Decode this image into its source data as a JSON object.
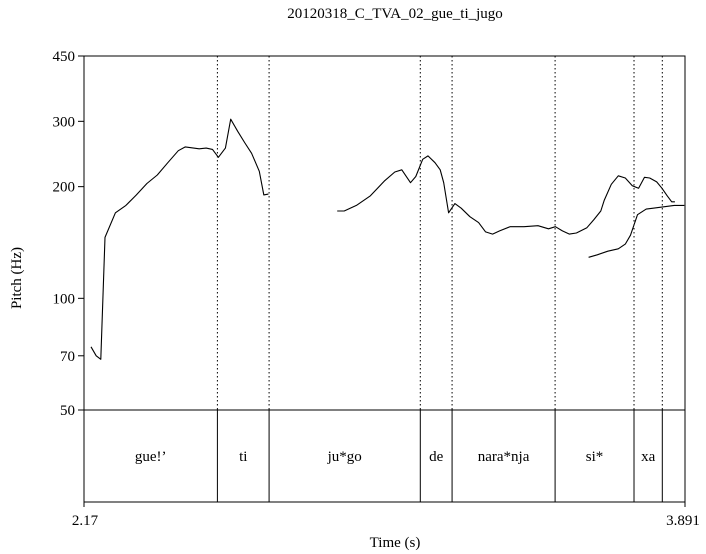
{
  "chart_data": {
    "type": "line",
    "title": "20120318_C_TVA_02_gue_ti_jugo",
    "xlabel": "Time (s)",
    "ylabel": "Pitch (Hz)",
    "xlim": [
      2.17,
      3.891
    ],
    "ylim": [
      50,
      450
    ],
    "y_scale": "log",
    "x_tick_labels": [
      "2.17",
      "3.891"
    ],
    "y_ticks": [
      {
        "value": 50,
        "label": "50"
      },
      {
        "value": 70,
        "label": "70"
      },
      {
        "value": 100,
        "label": "100"
      },
      {
        "value": 200,
        "label": "200"
      },
      {
        "value": 300,
        "label": "300"
      },
      {
        "value": 450,
        "label": "450"
      }
    ],
    "grid": false,
    "series": [
      {
        "segments": [
          [
            [
              2.19,
              74
            ],
            [
              2.205,
              70
            ],
            [
              2.218,
              68.5
            ],
            [
              2.23,
              146
            ],
            [
              2.26,
              170
            ],
            [
              2.29,
              178
            ],
            [
              2.32,
              190
            ],
            [
              2.35,
              204
            ],
            [
              2.38,
              215
            ],
            [
              2.41,
              232
            ],
            [
              2.44,
              250
            ],
            [
              2.46,
              256
            ],
            [
              2.5,
              253
            ],
            [
              2.52,
              254
            ],
            [
              2.538,
              252
            ],
            [
              2.555,
              240
            ],
            [
              2.575,
              254
            ],
            [
              2.59,
              304
            ],
            [
              2.61,
              282
            ],
            [
              2.63,
              263
            ],
            [
              2.65,
              246
            ],
            [
              2.672,
              220
            ],
            [
              2.685,
              190
            ],
            [
              2.698,
              191
            ]
          ],
          [
            [
              2.895,
              172
            ],
            [
              2.915,
              172
            ],
            [
              2.95,
              178
            ],
            [
              2.99,
              189
            ],
            [
              3.03,
              207
            ],
            [
              3.06,
              219
            ],
            [
              3.08,
              222
            ],
            [
              3.105,
              205
            ],
            [
              3.12,
              213
            ],
            [
              3.14,
              237
            ],
            [
              3.155,
              242
            ],
            [
              3.175,
              232
            ],
            [
              3.19,
              222
            ],
            [
              3.2,
              205
            ],
            [
              3.214,
              170
            ],
            [
              3.232,
              180
            ],
            [
              3.25,
              175
            ],
            [
              3.275,
              166
            ],
            [
              3.3,
              160
            ],
            [
              3.32,
              151
            ],
            [
              3.34,
              149
            ],
            [
              3.36,
              152
            ],
            [
              3.39,
              156
            ],
            [
              3.43,
              156
            ],
            [
              3.47,
              157
            ],
            [
              3.5,
              154
            ],
            [
              3.52,
              156
            ],
            [
              3.54,
              152
            ],
            [
              3.56,
              149
            ],
            [
              3.58,
              150
            ],
            [
              3.61,
              155
            ],
            [
              3.63,
              163
            ],
            [
              3.65,
              172
            ],
            [
              3.66,
              184
            ],
            [
              3.68,
              203
            ],
            [
              3.7,
              214
            ],
            [
              3.72,
              211
            ],
            [
              3.74,
              201
            ],
            [
              3.758,
              198
            ],
            [
              3.775,
              212
            ],
            [
              3.79,
              211
            ],
            [
              3.81,
              206
            ],
            [
              3.825,
              198
            ],
            [
              3.84,
              189
            ],
            [
              3.853,
              182
            ],
            [
              3.862,
              182
            ]
          ],
          [
            [
              3.615,
              129
            ],
            [
              3.64,
              131
            ],
            [
              3.67,
              134
            ],
            [
              3.7,
              136
            ],
            [
              3.72,
              140
            ],
            [
              3.735,
              148
            ],
            [
              3.755,
              168
            ],
            [
              3.78,
              174
            ],
            [
              3.8,
              175
            ],
            [
              3.86,
              178
            ],
            [
              3.889,
              178
            ]
          ]
        ]
      }
    ],
    "tier": {
      "boundaries": [
        2.17,
        2.552,
        2.7,
        3.133,
        3.224,
        3.519,
        3.745,
        3.826,
        3.891
      ],
      "intervals": [
        {
          "label": "gue!’",
          "start": 2.17,
          "end": 2.552
        },
        {
          "label": "ti",
          "start": 2.552,
          "end": 2.7
        },
        {
          "label": "ju*go",
          "start": 2.7,
          "end": 3.133
        },
        {
          "label": "de",
          "start": 3.133,
          "end": 3.224
        },
        {
          "label": "nara*nja",
          "start": 3.224,
          "end": 3.519
        },
        {
          "label": "si*",
          "start": 3.519,
          "end": 3.745
        },
        {
          "label": "xa",
          "start": 3.745,
          "end": 3.826
        }
      ]
    }
  }
}
